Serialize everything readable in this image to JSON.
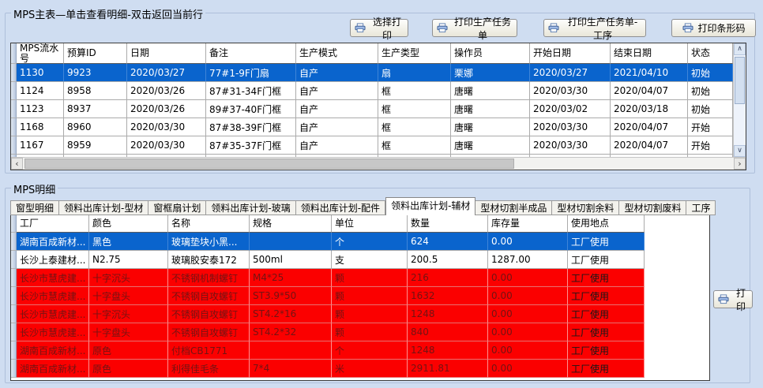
{
  "colors": {
    "panel_bg": "#cfddf1",
    "selected_row_bg": "#0a64cd",
    "alert_row_bg": "#fb0000",
    "grid_bg": "#ffffff"
  },
  "master_panel": {
    "title": "MPS主表—单击查看明细-双击返回当前行",
    "buttons": {
      "select_print": "选择打印",
      "print_task": "打印生产任务单",
      "print_task_process": "打印生产任务单-工序",
      "print_barcode": "打印条形码"
    },
    "table": {
      "columns": [
        "MPS流水号",
        "预算ID",
        "日期",
        "备注",
        "生产模式",
        "生产类型",
        "操作员",
        "开始日期",
        "结束日期",
        "状态"
      ],
      "rows": [
        {
          "state": "selected",
          "cells": [
            "1130",
            "9923",
            "2020/03/27",
            "77#1-9F门扇",
            "自产",
            "扇",
            "栗娜",
            "2020/03/27",
            "2021/04/10",
            "初始"
          ]
        },
        {
          "state": "normal",
          "cells": [
            "1124",
            "8958",
            "2020/03/26",
            "87#31-34F门框",
            "自产",
            "框",
            "唐曙",
            "2020/03/30",
            "2020/04/07",
            "初始"
          ]
        },
        {
          "state": "normal",
          "cells": [
            "1123",
            "8937",
            "2020/03/26",
            "89#37-40F门框",
            "自产",
            "框",
            "唐曙",
            "2020/03/02",
            "2020/03/18",
            "初始"
          ]
        },
        {
          "state": "normal",
          "cells": [
            "1168",
            "8960",
            "2020/03/30",
            "87#38-39F门框",
            "自产",
            "框",
            "唐曙",
            "2020/03/30",
            "2020/04/07",
            "开始"
          ]
        },
        {
          "state": "normal",
          "cells": [
            "1167",
            "8959",
            "2020/03/30",
            "87#35-37F门框",
            "自产",
            "框",
            "唐曙",
            "2020/03/30",
            "2020/04/07",
            "开始"
          ]
        }
      ]
    }
  },
  "detail_panel": {
    "title": "MPS明细",
    "print_button": "打印",
    "tabs": [
      {
        "label": "窗型明细",
        "active": false
      },
      {
        "label": "领料出库计划-型材",
        "active": false
      },
      {
        "label": "窗框扇计划",
        "active": false
      },
      {
        "label": "领料出库计划-玻璃",
        "active": false
      },
      {
        "label": "领料出库计划-配件",
        "active": false
      },
      {
        "label": "领料出库计划-辅材",
        "active": true
      },
      {
        "label": "型材切割半成品",
        "active": false
      },
      {
        "label": "型材切割余料",
        "active": false
      },
      {
        "label": "型材切割废料",
        "active": false
      },
      {
        "label": "工序",
        "active": false
      }
    ],
    "table": {
      "columns": [
        "工厂",
        "颜色",
        "名称",
        "规格",
        "单位",
        "数量",
        "库存量",
        "使用地点"
      ],
      "rows": [
        {
          "state": "selected",
          "cells": [
            "湖南百成新材...",
            "黑色",
            "玻璃垫块小黑...",
            "",
            "个",
            "624",
            "0.00",
            "工厂使用"
          ]
        },
        {
          "state": "normal",
          "cells": [
            "长沙上泰建材...",
            "N2.75",
            "玻璃胶安泰172",
            "500ml",
            "支",
            "200.5",
            "1287.00",
            "工厂使用"
          ]
        },
        {
          "state": "alert",
          "cells": [
            "长沙市慧虎建...",
            "十字沉头",
            "不锈钢机制螺钉",
            "M4*25",
            "颗",
            "216",
            "0.00",
            "工厂使用"
          ]
        },
        {
          "state": "alert",
          "cells": [
            "长沙市慧虎建...",
            "十字盘头",
            "不锈钢自攻螺钉",
            "ST3.9*50",
            "颗",
            "1632",
            "0.00",
            "工厂使用"
          ]
        },
        {
          "state": "alert",
          "cells": [
            "长沙市慧虎建...",
            "十字沉头",
            "不锈钢自攻螺钉",
            "ST4.2*16",
            "颗",
            "1248",
            "0.00",
            "工厂使用"
          ]
        },
        {
          "state": "alert",
          "cells": [
            "长沙市慧虎建...",
            "十字盘头",
            "不锈钢自攻螺钉",
            "ST4.2*32",
            "颗",
            "840",
            "0.00",
            "工厂使用"
          ]
        },
        {
          "state": "alert",
          "cells": [
            "湖南百成新材...",
            "原色",
            "付档CB1771",
            "",
            "个",
            "1248",
            "0.00",
            "工厂使用"
          ]
        },
        {
          "state": "alert",
          "cells": [
            "湖南百成新材...",
            "原色",
            "利得佳毛条",
            "7*4",
            "米",
            "2911.81",
            "0.00",
            "工厂使用"
          ]
        }
      ]
    }
  },
  "scrollbars": {
    "v_up": "∧",
    "v_down": "∨",
    "h_left": "‹",
    "h_right": "›"
  }
}
